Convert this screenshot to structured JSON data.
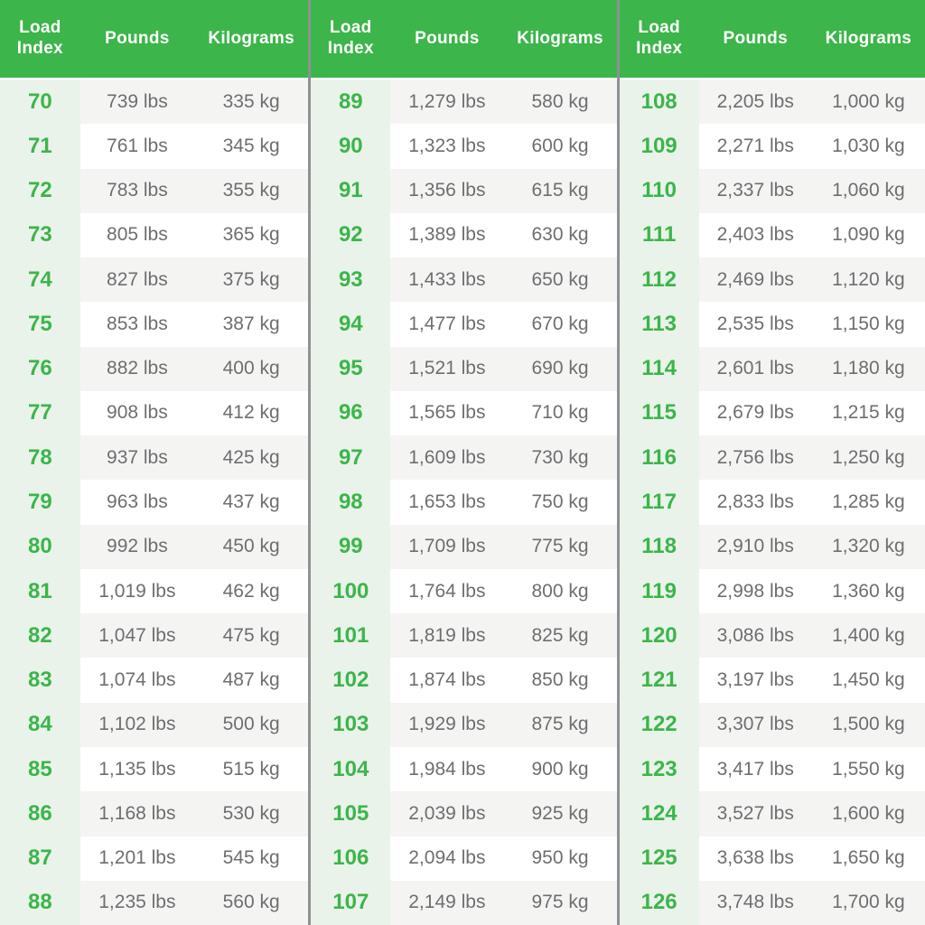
{
  "chart_data": {
    "type": "table",
    "columns": [
      "Load Index",
      "Pounds",
      "Kilograms"
    ],
    "layout": {
      "sections_side_by_side": 3,
      "header_bg": "#3cb54a",
      "header_text": "#ffffff",
      "index_column_bg": "#e9f3ea",
      "index_text_color": "#3cb54a",
      "stripe_row_bg": "#f4f5f3",
      "plain_row_bg": "#ffffff",
      "data_text_color": "#6d6e70",
      "divider_color": "#8f9194"
    },
    "sections": [
      {
        "rows": [
          {
            "index": "70",
            "lbs": "739 lbs",
            "kg": "335 kg"
          },
          {
            "index": "71",
            "lbs": "761 lbs",
            "kg": "345 kg"
          },
          {
            "index": "72",
            "lbs": "783 lbs",
            "kg": "355 kg"
          },
          {
            "index": "73",
            "lbs": "805 lbs",
            "kg": "365 kg"
          },
          {
            "index": "74",
            "lbs": "827 lbs",
            "kg": "375 kg"
          },
          {
            "index": "75",
            "lbs": "853 lbs",
            "kg": "387 kg"
          },
          {
            "index": "76",
            "lbs": "882 lbs",
            "kg": "400 kg"
          },
          {
            "index": "77",
            "lbs": "908 lbs",
            "kg": "412 kg"
          },
          {
            "index": "78",
            "lbs": "937 lbs",
            "kg": "425 kg"
          },
          {
            "index": "79",
            "lbs": "963 lbs",
            "kg": "437 kg"
          },
          {
            "index": "80",
            "lbs": "992 lbs",
            "kg": "450 kg"
          },
          {
            "index": "81",
            "lbs": "1,019 lbs",
            "kg": "462 kg"
          },
          {
            "index": "82",
            "lbs": "1,047 lbs",
            "kg": "475 kg"
          },
          {
            "index": "83",
            "lbs": "1,074 lbs",
            "kg": "487 kg"
          },
          {
            "index": "84",
            "lbs": "1,102 lbs",
            "kg": "500 kg"
          },
          {
            "index": "85",
            "lbs": "1,135 lbs",
            "kg": "515 kg"
          },
          {
            "index": "86",
            "lbs": "1,168 lbs",
            "kg": "530 kg"
          },
          {
            "index": "87",
            "lbs": "1,201 lbs",
            "kg": "545 kg"
          },
          {
            "index": "88",
            "lbs": "1,235 lbs",
            "kg": "560 kg"
          }
        ]
      },
      {
        "rows": [
          {
            "index": "89",
            "lbs": "1,279 lbs",
            "kg": "580 kg"
          },
          {
            "index": "90",
            "lbs": "1,323 lbs",
            "kg": "600 kg"
          },
          {
            "index": "91",
            "lbs": "1,356 lbs",
            "kg": "615 kg"
          },
          {
            "index": "92",
            "lbs": "1,389 lbs",
            "kg": "630 kg"
          },
          {
            "index": "93",
            "lbs": "1,433 lbs",
            "kg": "650 kg"
          },
          {
            "index": "94",
            "lbs": "1,477 lbs",
            "kg": "670 kg"
          },
          {
            "index": "95",
            "lbs": "1,521 lbs",
            "kg": "690 kg"
          },
          {
            "index": "96",
            "lbs": "1,565 lbs",
            "kg": "710 kg"
          },
          {
            "index": "97",
            "lbs": "1,609 lbs",
            "kg": "730 kg"
          },
          {
            "index": "98",
            "lbs": "1,653 lbs",
            "kg": "750 kg"
          },
          {
            "index": "99",
            "lbs": "1,709 lbs",
            "kg": "775 kg"
          },
          {
            "index": "100",
            "lbs": "1,764 lbs",
            "kg": "800 kg"
          },
          {
            "index": "101",
            "lbs": "1,819 lbs",
            "kg": "825 kg"
          },
          {
            "index": "102",
            "lbs": "1,874 lbs",
            "kg": "850 kg"
          },
          {
            "index": "103",
            "lbs": "1,929 lbs",
            "kg": "875 kg"
          },
          {
            "index": "104",
            "lbs": "1,984 lbs",
            "kg": "900 kg"
          },
          {
            "index": "105",
            "lbs": "2,039 lbs",
            "kg": "925 kg"
          },
          {
            "index": "106",
            "lbs": "2,094 lbs",
            "kg": "950 kg"
          },
          {
            "index": "107",
            "lbs": "2,149 lbs",
            "kg": "975 kg"
          }
        ]
      },
      {
        "rows": [
          {
            "index": "108",
            "lbs": "2,205 lbs",
            "kg": "1,000 kg"
          },
          {
            "index": "109",
            "lbs": "2,271 lbs",
            "kg": "1,030 kg"
          },
          {
            "index": "110",
            "lbs": "2,337 lbs",
            "kg": "1,060 kg"
          },
          {
            "index": "111",
            "lbs": "2,403 lbs",
            "kg": "1,090 kg"
          },
          {
            "index": "112",
            "lbs": "2,469 lbs",
            "kg": "1,120 kg"
          },
          {
            "index": "113",
            "lbs": "2,535 lbs",
            "kg": "1,150 kg"
          },
          {
            "index": "114",
            "lbs": "2,601 lbs",
            "kg": "1,180 kg"
          },
          {
            "index": "115",
            "lbs": "2,679 lbs",
            "kg": "1,215 kg"
          },
          {
            "index": "116",
            "lbs": "2,756 lbs",
            "kg": "1,250 kg"
          },
          {
            "index": "117",
            "lbs": "2,833 lbs",
            "kg": "1,285 kg"
          },
          {
            "index": "118",
            "lbs": "2,910 lbs",
            "kg": "1,320 kg"
          },
          {
            "index": "119",
            "lbs": "2,998 lbs",
            "kg": "1,360 kg"
          },
          {
            "index": "120",
            "lbs": "3,086 lbs",
            "kg": "1,400 kg"
          },
          {
            "index": "121",
            "lbs": "3,197 lbs",
            "kg": "1,450 kg"
          },
          {
            "index": "122",
            "lbs": "3,307 lbs",
            "kg": "1,500 kg"
          },
          {
            "index": "123",
            "lbs": "3,417 lbs",
            "kg": "1,550 kg"
          },
          {
            "index": "124",
            "lbs": "3,527 lbs",
            "kg": "1,600 kg"
          },
          {
            "index": "125",
            "lbs": "3,638 lbs",
            "kg": "1,650 kg"
          },
          {
            "index": "126",
            "lbs": "3,748 lbs",
            "kg": "1,700 kg"
          }
        ]
      }
    ]
  }
}
